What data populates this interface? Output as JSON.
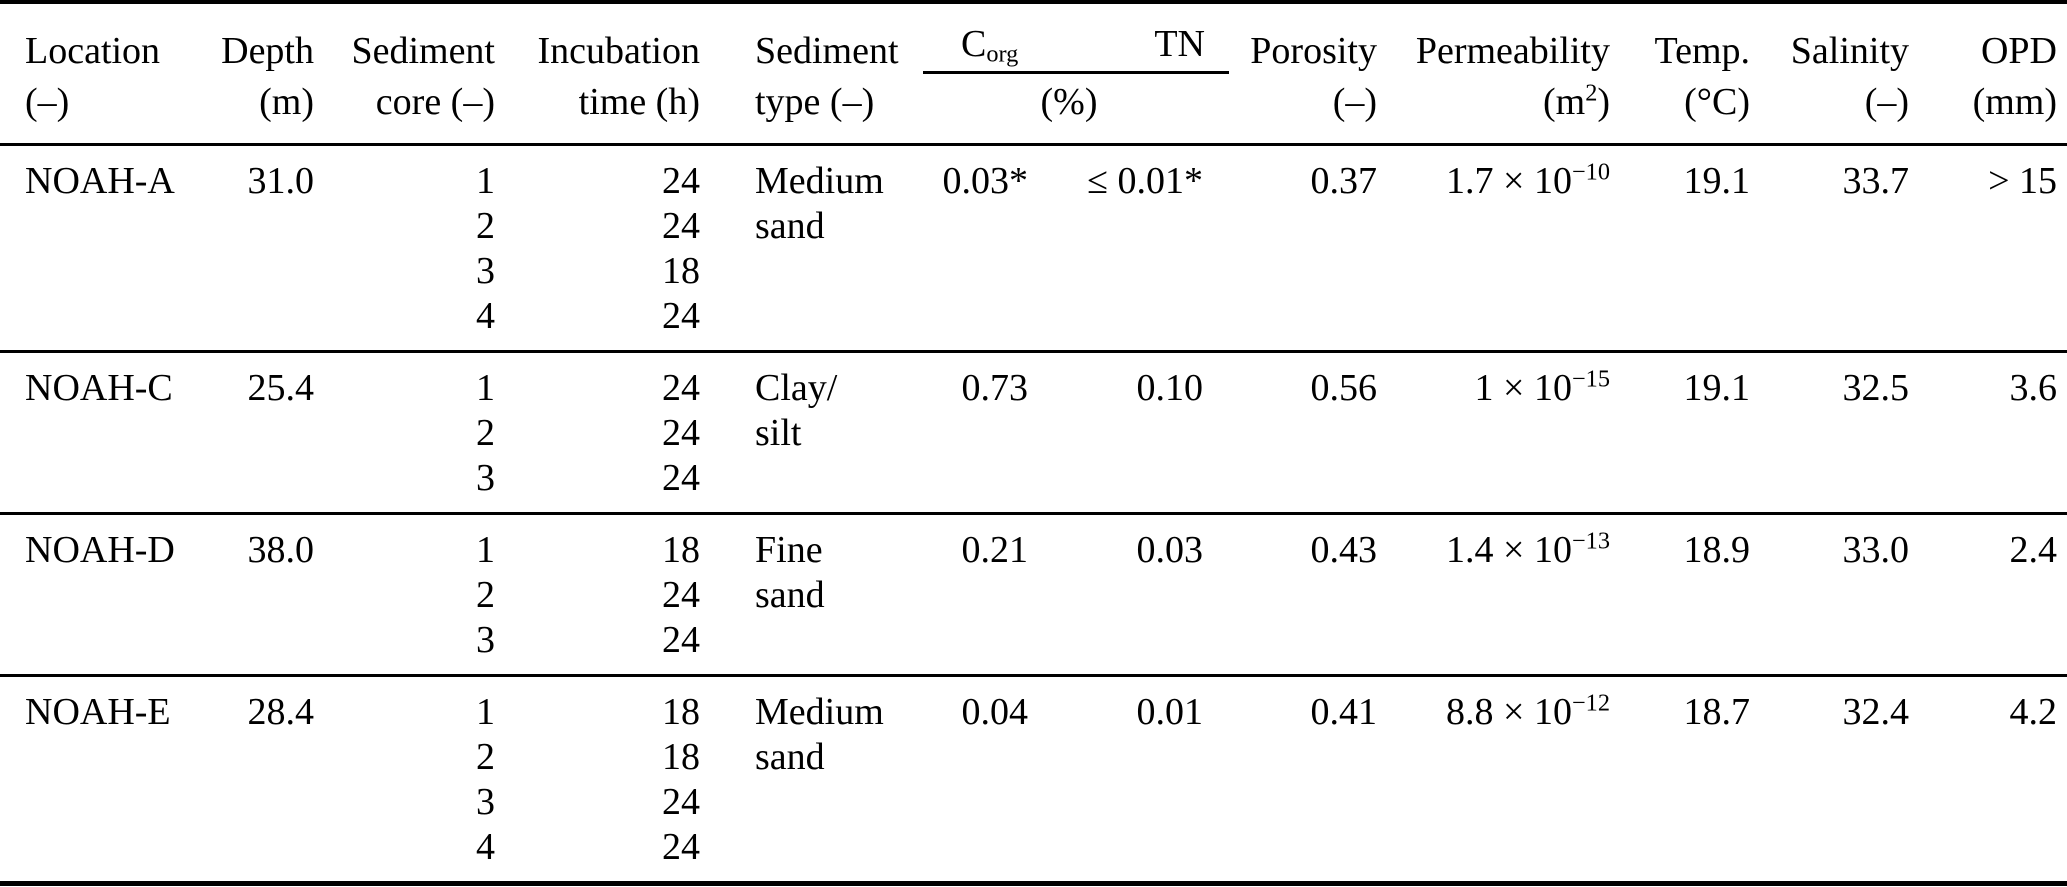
{
  "page": {
    "background": "#ffffff",
    "text_color": "#000000"
  },
  "table": {
    "header": {
      "location": {
        "line1": "Location",
        "line2": "(–)"
      },
      "depth": {
        "line1": "Depth",
        "line2": "(m)"
      },
      "core": {
        "line1": "Sediment",
        "line2": "core (–)"
      },
      "incubation": {
        "line1": "Incubation",
        "line2": "time (h)"
      },
      "type": {
        "line1": "Sediment",
        "line2": "type (–)"
      },
      "corg_tn_group": {
        "corg_main": "C",
        "corg_sub": "org",
        "tn": "TN",
        "unit": "(%)"
      },
      "porosity": {
        "line1": "Porosity",
        "line2": "(–)"
      },
      "permeability": {
        "line1": "Permeability",
        "unit_pre": "(m",
        "unit_sup": "2",
        "unit_post": ")"
      },
      "temp": {
        "line1": "Temp.",
        "line2": "(°C)"
      },
      "salinity": {
        "line1": "Salinity",
        "line2": "(–)"
      },
      "opd": {
        "line1": "OPD",
        "line2": "(mm)"
      }
    },
    "rows": [
      {
        "location": "NOAH-A",
        "depth": "31.0",
        "cores": [
          "1",
          "2",
          "3",
          "4"
        ],
        "times": [
          "24",
          "24",
          "18",
          "24"
        ],
        "type": [
          "Medium",
          "sand"
        ],
        "corg": "0.03*",
        "tn": "≤ 0.01*",
        "porosity": "0.37",
        "perm_base": "1.7 × 10",
        "perm_exp": "−10",
        "temp": "19.1",
        "salinity": "33.7",
        "opd": "> 15"
      },
      {
        "location": "NOAH-C",
        "depth": "25.4",
        "cores": [
          "1",
          "2",
          "3"
        ],
        "times": [
          "24",
          "24",
          "24"
        ],
        "type": [
          "Clay/",
          "silt"
        ],
        "corg": "0.73",
        "tn": "0.10",
        "porosity": "0.56",
        "perm_base": "1 × 10",
        "perm_exp": "−15",
        "temp": "19.1",
        "salinity": "32.5",
        "opd": "3.6"
      },
      {
        "location": "NOAH-D",
        "depth": "38.0",
        "cores": [
          "1",
          "2",
          "3"
        ],
        "times": [
          "18",
          "24",
          "24"
        ],
        "type": [
          "Fine",
          "sand"
        ],
        "corg": "0.21",
        "tn": "0.03",
        "porosity": "0.43",
        "perm_base": "1.4 × 10",
        "perm_exp": "−13",
        "temp": "18.9",
        "salinity": "33.0",
        "opd": "2.4"
      },
      {
        "location": "NOAH-E",
        "depth": "28.4",
        "cores": [
          "1",
          "2",
          "3",
          "4"
        ],
        "times": [
          "18",
          "18",
          "24",
          "24"
        ],
        "type": [
          "Medium",
          "sand"
        ],
        "corg": "0.04",
        "tn": "0.01",
        "porosity": "0.41",
        "perm_base": "8.8 × 10",
        "perm_exp": "−12",
        "temp": "18.7",
        "salinity": "32.4",
        "opd": "4.2"
      }
    ]
  }
}
